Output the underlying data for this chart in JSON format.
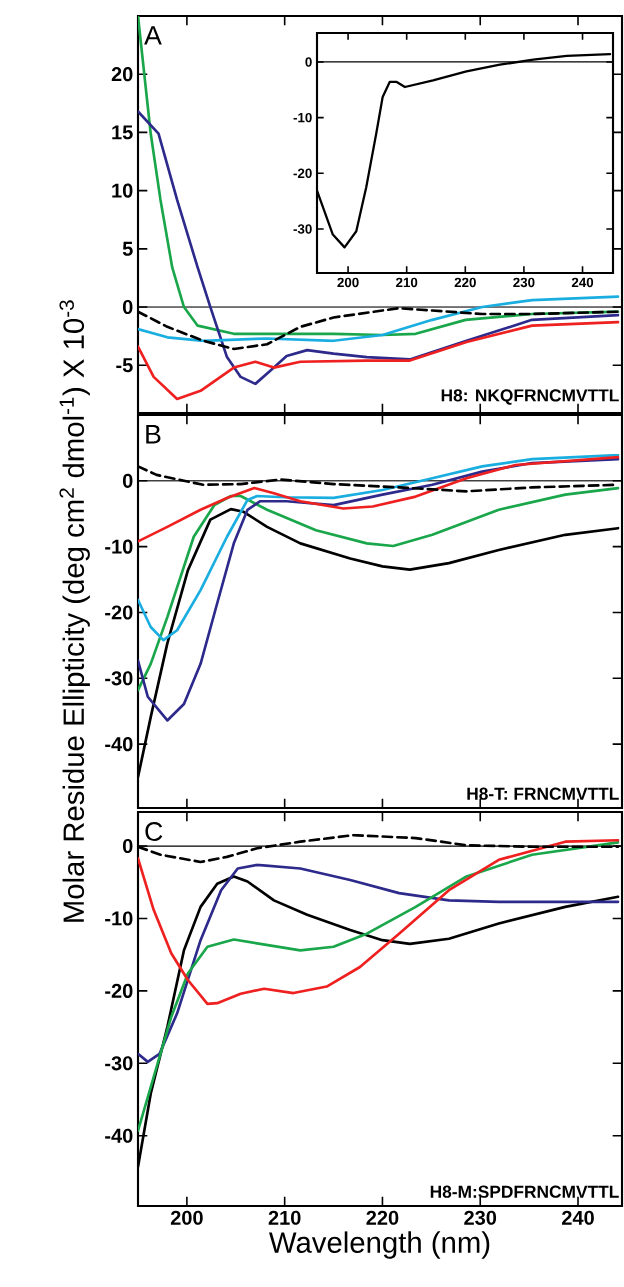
{
  "chart_data": [
    {
      "type": "line",
      "xlim": [
        195,
        244.5
      ],
      "ylim": [
        -9.1,
        25
      ],
      "xticks": [
        200,
        210,
        220,
        230,
        240
      ],
      "yticks": [
        -5,
        0,
        5,
        10,
        15,
        20
      ],
      "tick_labels": "y",
      "ref_lines": [
        {
          "axis": "y",
          "value": 0
        }
      ],
      "annotations": [
        "A",
        "H8: NKQFRNCMVTTL"
      ],
      "series": [
        {
          "color": "#1aa64a",
          "x": [
            195,
            196.3,
            197.3,
            198.5,
            199.7,
            201.1,
            204.8,
            208.2,
            215,
            220,
            223.4,
            228.5,
            235.3,
            244.1
          ],
          "values": [
            25,
            14.9,
            9.2,
            3.4,
            0,
            -1.6,
            -2.3,
            -2.3,
            -2.3,
            -2.4,
            -2.3,
            -1.1,
            -0.6,
            -0.4
          ]
        },
        {
          "color": "#2e2a8c",
          "x": [
            195,
            197.1,
            199,
            201.1,
            202.4,
            204.1,
            205.5,
            207,
            208.5,
            210.2,
            212.3,
            215,
            218.4,
            222.8,
            228.6,
            235.3,
            244.1
          ],
          "values": [
            16.8,
            14.9,
            9.2,
            3.4,
            0,
            -4.3,
            -6,
            -6.6,
            -5.5,
            -4.2,
            -3.7,
            -4,
            -4.3,
            -4.5,
            -2.9,
            -1.1,
            -0.7
          ]
        },
        {
          "color": "#1aaee0",
          "x": [
            195,
            198,
            201.7,
            208.2,
            215,
            220,
            225.1,
            230.2,
            235.3,
            244.1
          ],
          "values": [
            -1.9,
            -2.6,
            -2.9,
            -2.7,
            -2.9,
            -2.4,
            -1.1,
            0,
            0.6,
            0.9
          ]
        },
        {
          "color": "#000000",
          "line_style": "dashed",
          "x": [
            195,
            198,
            201.7,
            204.8,
            208.2,
            211.6,
            215,
            220,
            221.7,
            225.1,
            230.2,
            235.3,
            244.1
          ],
          "values": [
            -0.4,
            -1.7,
            -2.9,
            -3.6,
            -3.2,
            -1.7,
            -0.9,
            -0.3,
            -0.1,
            -0.3,
            -0.6,
            -0.6,
            -0.4
          ]
        },
        {
          "color": "#ee2020",
          "x": [
            195,
            196.6,
            199,
            201.4,
            204.8,
            207,
            208.9,
            211.6,
            218.4,
            222.8,
            228.6,
            235.3,
            244.1
          ],
          "values": [
            -3.4,
            -6,
            -7.9,
            -7.2,
            -5.2,
            -4.7,
            -5.2,
            -4.7,
            -4.6,
            -4.6,
            -3,
            -1.6,
            -1.3
          ]
        }
      ]
    },
    {
      "type": "line",
      "xlim": [
        194.7,
        245.2
      ],
      "ylim": [
        -37.9,
        5.2
      ],
      "xticks": [
        200,
        210,
        220,
        230,
        240
      ],
      "yticks": [
        -30,
        -20,
        -10,
        0
      ],
      "ref_lines": [
        {
          "axis": "y",
          "value": 0
        }
      ],
      "series": [
        {
          "color": "#000000",
          "x": [
            194.7,
            197.4,
            199.4,
            201.4,
            203.1,
            204.8,
            205.9,
            207.1,
            208.3,
            209.7,
            214.5,
            220.2,
            225.9,
            231.6,
            237.3,
            244.7
          ],
          "values": [
            -23.1,
            -31,
            -33.3,
            -30.4,
            -22.5,
            -12.9,
            -6.3,
            -3.6,
            -3.6,
            -4.5,
            -3.3,
            -1.7,
            -0.5,
            0.4,
            1.1,
            1.4
          ]
        }
      ]
    },
    {
      "type": "line",
      "xlim": [
        195,
        244.5
      ],
      "ylim": [
        -49.7,
        10
      ],
      "xticks": [
        200,
        210,
        220,
        230,
        240
      ],
      "yticks": [
        -40,
        -30,
        -20,
        -10,
        0
      ],
      "tick_labels": "y",
      "ylabel": "Molar Residue Ellipticity (deg cm$^{2}$ dmol$^{-1}$) X 10$^{-3}$",
      "ref_lines": [
        {
          "axis": "y",
          "value": 0
        }
      ],
      "annotations": [
        "B",
        "H8-T: FRNCMVTTL"
      ],
      "series": [
        {
          "color": "#000000",
          "x": [
            195,
            196.3,
            198,
            200.1,
            202.4,
            204.5,
            205.8,
            208.2,
            211.6,
            216.7,
            220,
            222.8,
            226.8,
            231.9,
            238.7,
            244.1
          ],
          "values": [
            -45,
            -35.9,
            -24.7,
            -13.6,
            -5.9,
            -4.3,
            -4.7,
            -7,
            -9.5,
            -11.8,
            -13,
            -13.5,
            -12.5,
            -10.5,
            -8.2,
            -7.2
          ]
        },
        {
          "color": "#1aa64a",
          "x": [
            195,
            196.3,
            198,
            200.7,
            202.8,
            204.5,
            205.5,
            208.2,
            213.2,
            218.4,
            221.1,
            225.1,
            231.9,
            238.7,
            244.1
          ],
          "values": [
            -31.8,
            -27.8,
            -20.7,
            -8.5,
            -3.7,
            -2.3,
            -2.3,
            -4.4,
            -7.5,
            -9.5,
            -9.9,
            -8.2,
            -4.4,
            -2.1,
            -1.1
          ]
        },
        {
          "color": "#1aaee0",
          "x": [
            195,
            196.3,
            197.6,
            199,
            201.4,
            204.1,
            206.2,
            207.2,
            209.9,
            215,
            220,
            225.1,
            230.2,
            235.3,
            244.1
          ],
          "values": [
            -18.1,
            -22.2,
            -24.2,
            -22.7,
            -16.6,
            -8.5,
            -2.9,
            -2.3,
            -2.5,
            -2.6,
            -1.4,
            0.4,
            2.2,
            3.3,
            3.9
          ]
        },
        {
          "color": "#2e2a8c",
          "x": [
            195,
            196,
            198,
            199.7,
            201.4,
            203.1,
            204.8,
            206.2,
            207.5,
            210.2,
            215,
            220,
            225.1,
            230.2,
            235.3,
            244.1
          ],
          "values": [
            -27.3,
            -32.8,
            -36.4,
            -33.9,
            -27.8,
            -18.6,
            -9.5,
            -4.4,
            -3.1,
            -3.1,
            -3.7,
            -2.1,
            -0.6,
            1.4,
            2.7,
            3.3
          ]
        },
        {
          "color": "#ee2020",
          "x": [
            195,
            198,
            201.4,
            204.1,
            206.9,
            208.9,
            211.6,
            216,
            219,
            223.4,
            228.6,
            233.6,
            244.1
          ],
          "values": [
            -9.2,
            -7,
            -4.4,
            -2.6,
            -1.1,
            -1.9,
            -3.1,
            -4.2,
            -3.9,
            -2.4,
            0.4,
            2.4,
            3.6
          ]
        },
        {
          "color": "#000000",
          "line_style": "dashed",
          "x": [
            195,
            196.9,
            199.7,
            201.7,
            205.5,
            209.6,
            215,
            221.7,
            228.6,
            235.3,
            244.1
          ],
          "values": [
            2.2,
            0.9,
            0,
            -0.6,
            -0.5,
            0.2,
            -0.5,
            -1,
            -1.6,
            -1,
            -0.6
          ]
        }
      ]
    },
    {
      "type": "line",
      "xlim": [
        195,
        244.5
      ],
      "ylim": [
        -49.7,
        4.7
      ],
      "xticks": [
        200,
        210,
        220,
        230,
        240
      ],
      "yticks": [
        -40,
        -30,
        -20,
        -10,
        0
      ],
      "xlabel": "Wavelength (nm)",
      "ref_lines": [
        {
          "axis": "y",
          "value": 0
        }
      ],
      "annotations": [
        "C",
        "H8-M:SPDFRNCMVTTL"
      ],
      "series": [
        {
          "color": "#000000",
          "x": [
            195,
            196.3,
            198,
            199.7,
            201.4,
            203.1,
            204.8,
            206.2,
            208.9,
            212.3,
            216.7,
            220,
            222.8,
            226.8,
            231.9,
            238.7,
            244.1
          ],
          "values": [
            -44.3,
            -34.2,
            -25,
            -14.4,
            -8.4,
            -5.2,
            -4.2,
            -4.9,
            -7.5,
            -9.5,
            -11.6,
            -13,
            -13.5,
            -12.8,
            -10.7,
            -8.4,
            -7
          ]
        },
        {
          "color": "#2e2a8c",
          "x": [
            195,
            196,
            197.2,
            199,
            201.4,
            203.5,
            205.2,
            207.2,
            211.6,
            216.7,
            221.7,
            226.8,
            231.9,
            238.7,
            244.1
          ],
          "values": [
            -28.7,
            -29.8,
            -28.7,
            -23.1,
            -13,
            -6.1,
            -3.1,
            -2.6,
            -3.1,
            -4.7,
            -6.5,
            -7.5,
            -7.7,
            -7.7,
            -7.7
          ]
        },
        {
          "color": "#1aa64a",
          "x": [
            195,
            196.6,
            198.4,
            200.1,
            202.1,
            204.8,
            207.5,
            211.6,
            215,
            218.4,
            223.4,
            228.6,
            235.3,
            244.1
          ],
          "values": [
            -39.3,
            -31.9,
            -23.6,
            -17.6,
            -13.9,
            -12.9,
            -13.5,
            -14.4,
            -13.9,
            -12.1,
            -8.4,
            -4.2,
            -1.2,
            0.5
          ]
        },
        {
          "color": "#ee2020",
          "x": [
            195,
            196.6,
            198.4,
            200.1,
            202.1,
            203.1,
            205.5,
            207.9,
            210.9,
            214.3,
            217.7,
            221.7,
            226.8,
            231.9,
            238.7,
            244.1
          ],
          "values": [
            -1.7,
            -8.8,
            -14.8,
            -18.5,
            -21.8,
            -21.7,
            -20.4,
            -19.7,
            -20.3,
            -19.4,
            -16.7,
            -12.1,
            -6.1,
            -1.9,
            0.6,
            0.8
          ]
        },
        {
          "color": "#000000",
          "line_style": "dashed",
          "x": [
            195,
            197.3,
            201.4,
            204.1,
            207.2,
            211.6,
            217,
            223.4,
            228.6,
            235.3,
            244.1
          ],
          "values": [
            -0.1,
            -1.2,
            -2.2,
            -1.5,
            -0.3,
            0.6,
            1.5,
            1.1,
            0.1,
            -0.1,
            -0.1
          ]
        }
      ]
    }
  ]
}
